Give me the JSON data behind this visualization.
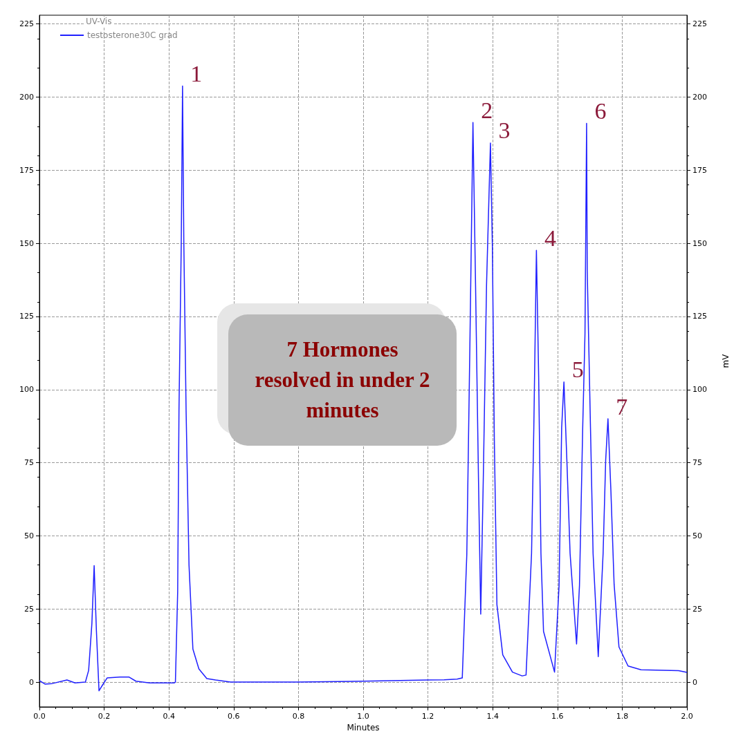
{
  "chart_data": {
    "type": "line",
    "xlabel": "Minutes",
    "y2label": "mV",
    "legend_title": "UV-Vis",
    "legend": "top left",
    "grid": true,
    "xlim": [
      0,
      2
    ],
    "xticks": [
      {
        "value": 0,
        "label": "0.0"
      },
      0.2,
      0.4,
      0.6,
      0.8,
      {
        "value": 1,
        "label": "1.0"
      },
      1.2,
      1.4,
      1.6,
      1.8,
      {
        "value": 2,
        "label": "2.0"
      }
    ],
    "ylim": [
      -8.5,
      228
    ],
    "yticks": [
      0,
      25,
      50,
      75,
      100,
      125,
      150,
      175,
      200,
      225
    ],
    "y2lim": [
      -8.5,
      228
    ],
    "y2ticks": [
      0,
      25,
      50,
      75,
      100,
      125,
      150,
      175,
      200,
      225
    ],
    "series": [
      {
        "name": "testosterone30C grad",
        "color": "#1f1fff",
        "x": [
          0,
          0.017,
          0.04,
          0.085,
          0.11,
          0.142,
          0.152,
          0.162,
          0.169,
          0.176,
          0.184,
          0.195,
          0.209,
          0.249,
          0.277,
          0.298,
          0.34,
          0.416,
          0.42,
          0.427,
          0.431,
          0.438,
          0.442,
          0.446,
          0.453,
          0.462,
          0.474,
          0.4925,
          0.517,
          0.544,
          0.59,
          0.8,
          1.0,
          1.2,
          1.25,
          1.29,
          1.306,
          1.32,
          1.3295,
          1.339,
          1.347,
          1.356,
          1.363,
          1.371,
          1.381,
          1.393,
          1.399,
          1.405,
          1.413,
          1.431,
          1.461,
          1.491,
          1.503,
          1.52,
          1.527,
          1.535,
          1.542,
          1.549,
          1.557,
          1.591,
          1.605,
          1.613,
          1.62,
          1.629,
          1.639,
          1.659,
          1.668,
          1.678,
          1.685,
          1.69,
          1.692,
          1.702,
          1.71,
          1.726,
          1.741,
          1.749,
          1.756,
          1.765,
          1.775,
          1.79,
          1.818,
          1.858,
          1.974,
          2.0
        ],
        "values": [
          0.5,
          -0.7,
          -0.5,
          0.7,
          -0.3,
          0,
          4,
          20,
          39.8,
          17.5,
          -3,
          -1,
          1.4,
          1.7,
          1.7,
          0.3,
          -0.3,
          -0.3,
          0,
          31,
          92.7,
          149.5,
          203.8,
          150,
          92.7,
          40,
          11.3,
          4.5,
          1.2,
          0.7,
          0,
          0,
          0.3,
          0.7,
          0.8,
          1,
          1.4,
          43.6,
          115,
          191.3,
          136,
          70,
          23.2,
          70,
          136,
          184.3,
          149,
          83,
          26.5,
          9.3,
          3.4,
          2.1,
          2.4,
          44,
          87,
          147.6,
          104,
          44,
          17.3,
          3.4,
          33,
          87,
          102.6,
          76,
          44,
          13,
          33,
          87,
          119,
          191,
          140.5,
          87,
          44,
          8.7,
          44,
          76,
          90,
          65.6,
          33.4,
          12,
          5.5,
          4.2,
          3.9,
          3.3
        ]
      }
    ],
    "annotations": [
      {
        "text": "1",
        "x": 0.442,
        "y": 203.8
      },
      {
        "text": "2",
        "x": 1.339,
        "y": 191.3
      },
      {
        "text": "3",
        "x": 1.393,
        "y": 184.3
      },
      {
        "text": "4",
        "x": 1.535,
        "y": 147.6
      },
      {
        "text": "5",
        "x": 1.62,
        "y": 102.6
      },
      {
        "text": "6",
        "x": 1.69,
        "y": 191
      },
      {
        "text": "7",
        "x": 1.756,
        "y": 90
      },
      "7 Hormones resolved in under 2 minutes"
    ]
  }
}
